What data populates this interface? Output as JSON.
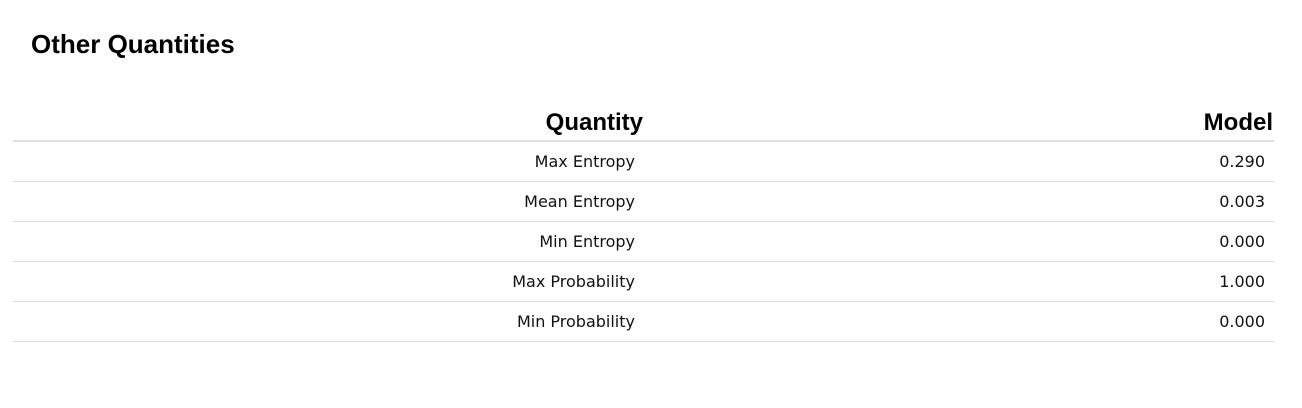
{
  "title": "Other Quantities",
  "table": {
    "headers": {
      "quantity": "Quantity",
      "model": "Model"
    },
    "rows": [
      {
        "quantity": "Max Entropy",
        "model": "0.290"
      },
      {
        "quantity": "Mean Entropy",
        "model": "0.003"
      },
      {
        "quantity": "Min Entropy",
        "model": "0.000"
      },
      {
        "quantity": "Max Probability",
        "model": "1.000"
      },
      {
        "quantity": "Min Probability",
        "model": "0.000"
      }
    ]
  }
}
